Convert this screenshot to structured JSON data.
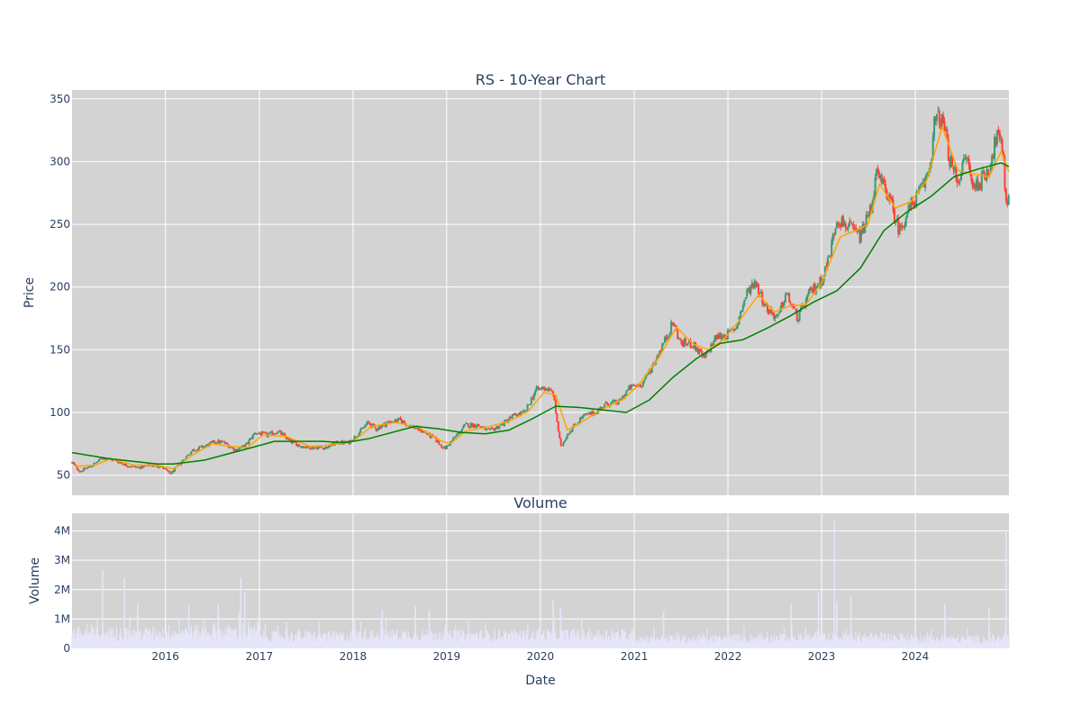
{
  "chart_data": [
    {
      "type": "candlestick",
      "title": "RS - 10-Year Chart",
      "xlabel": "",
      "ylabel": "Price",
      "x_range": [
        "2015-01-02",
        "2024-12-31"
      ],
      "ylim": [
        34,
        357
      ],
      "y_ticks": [
        50,
        100,
        150,
        200,
        250,
        300,
        350
      ],
      "grid": true,
      "legend": "none",
      "plot_background": "#d3d3d3",
      "colors": {
        "up": "#3d9970",
        "down": "#ff4136",
        "ma_short": "#ffa500",
        "ma_long": "#008000",
        "grid": "#ffffff"
      },
      "price_path": [
        [
          "2015-01-02",
          60
        ],
        [
          "2015-02-01",
          53
        ],
        [
          "2015-03-15",
          57
        ],
        [
          "2015-05-01",
          64
        ],
        [
          "2015-06-15",
          62
        ],
        [
          "2015-08-01",
          58
        ],
        [
          "2015-09-15",
          56
        ],
        [
          "2015-11-01",
          58
        ],
        [
          "2015-12-15",
          57
        ],
        [
          "2016-01-20",
          51
        ],
        [
          "2016-03-01",
          60
        ],
        [
          "2016-04-15",
          70
        ],
        [
          "2016-06-01",
          73
        ],
        [
          "2016-07-15",
          77
        ],
        [
          "2016-08-15",
          76
        ],
        [
          "2016-10-01",
          70
        ],
        [
          "2016-11-10",
          74
        ],
        [
          "2016-12-15",
          84
        ],
        [
          "2017-02-01",
          82
        ],
        [
          "2017-03-15",
          85
        ],
        [
          "2017-05-01",
          77
        ],
        [
          "2017-06-15",
          73
        ],
        [
          "2017-08-01",
          72
        ],
        [
          "2017-09-15",
          72
        ],
        [
          "2017-11-01",
          76
        ],
        [
          "2017-12-15",
          76
        ],
        [
          "2018-01-20",
          83
        ],
        [
          "2018-03-01",
          92
        ],
        [
          "2018-04-01",
          87
        ],
        [
          "2018-05-15",
          92
        ],
        [
          "2018-07-01",
          94
        ],
        [
          "2018-08-15",
          89
        ],
        [
          "2018-10-01",
          85
        ],
        [
          "2018-11-15",
          79
        ],
        [
          "2018-12-24",
          71
        ],
        [
          "2019-02-01",
          80
        ],
        [
          "2019-03-15",
          90
        ],
        [
          "2019-05-01",
          90
        ],
        [
          "2019-06-15",
          85
        ],
        [
          "2019-08-01",
          90
        ],
        [
          "2019-09-15",
          97
        ],
        [
          "2019-11-01",
          100
        ],
        [
          "2019-12-15",
          118
        ],
        [
          "2020-01-20",
          120
        ],
        [
          "2020-02-20",
          115
        ],
        [
          "2020-03-20",
          72
        ],
        [
          "2020-04-15",
          83
        ],
        [
          "2020-05-15",
          90
        ],
        [
          "2020-06-15",
          97
        ],
        [
          "2020-08-01",
          100
        ],
        [
          "2020-09-15",
          107
        ],
        [
          "2020-11-01",
          108
        ],
        [
          "2020-12-15",
          120
        ],
        [
          "2021-02-01",
          123
        ],
        [
          "2021-03-15",
          138
        ],
        [
          "2021-05-01",
          158
        ],
        [
          "2021-06-01",
          172
        ],
        [
          "2021-07-01",
          155
        ],
        [
          "2021-08-15",
          155
        ],
        [
          "2021-10-01",
          143
        ],
        [
          "2021-11-15",
          160
        ],
        [
          "2021-12-31",
          162
        ],
        [
          "2022-02-01",
          168
        ],
        [
          "2022-03-15",
          195
        ],
        [
          "2022-04-15",
          205
        ],
        [
          "2022-06-01",
          183
        ],
        [
          "2022-07-15",
          175
        ],
        [
          "2022-08-15",
          195
        ],
        [
          "2022-09-30",
          175
        ],
        [
          "2022-11-15",
          195
        ],
        [
          "2022-12-31",
          205
        ],
        [
          "2023-02-01",
          225
        ],
        [
          "2023-03-01",
          255
        ],
        [
          "2023-04-15",
          248
        ],
        [
          "2023-06-01",
          240
        ],
        [
          "2023-07-15",
          265
        ],
        [
          "2023-08-01",
          290
        ],
        [
          "2023-09-15",
          275
        ],
        [
          "2023-10-30",
          245
        ],
        [
          "2023-12-15",
          265
        ],
        [
          "2024-02-01",
          280
        ],
        [
          "2024-03-01",
          300
        ],
        [
          "2024-03-15",
          330
        ],
        [
          "2024-04-01",
          335
        ],
        [
          "2024-04-20",
          330
        ],
        [
          "2024-05-15",
          300
        ],
        [
          "2024-06-15",
          285
        ],
        [
          "2024-07-20",
          305
        ],
        [
          "2024-08-10",
          280
        ],
        [
          "2024-09-15",
          285
        ],
        [
          "2024-10-15",
          295
        ],
        [
          "2024-11-15",
          322
        ],
        [
          "2024-12-10",
          305
        ],
        [
          "2024-12-18",
          268
        ],
        [
          "2024-12-31",
          270
        ]
      ],
      "series": [
        {
          "type": "line",
          "role": "short-moving-average",
          "color": "#ffa500",
          "points": [
            [
              "2015-01-15",
              57
            ],
            [
              "2015-04-01",
              58
            ],
            [
              "2015-06-01",
              63
            ],
            [
              "2015-09-01",
              58
            ],
            [
              "2015-12-01",
              58
            ],
            [
              "2016-02-01",
              55
            ],
            [
              "2016-04-15",
              66
            ],
            [
              "2016-07-01",
              75
            ],
            [
              "2016-09-15",
              73
            ],
            [
              "2016-11-15",
              72
            ],
            [
              "2017-01-15",
              82
            ],
            [
              "2017-04-15",
              81
            ],
            [
              "2017-07-15",
              73
            ],
            [
              "2017-10-01",
              74
            ],
            [
              "2018-01-01",
              77
            ],
            [
              "2018-03-15",
              89
            ],
            [
              "2018-06-15",
              92
            ],
            [
              "2018-09-15",
              88
            ],
            [
              "2018-12-01",
              78
            ],
            [
              "2019-01-15",
              75
            ],
            [
              "2019-03-15",
              85
            ],
            [
              "2019-06-01",
              88
            ],
            [
              "2019-09-01",
              93
            ],
            [
              "2019-11-15",
              101
            ],
            [
              "2020-01-15",
              116
            ],
            [
              "2020-03-01",
              114
            ],
            [
              "2020-04-15",
              86
            ],
            [
              "2020-06-15",
              93
            ],
            [
              "2020-09-01",
              103
            ],
            [
              "2020-11-15",
              110
            ],
            [
              "2021-01-15",
              121
            ],
            [
              "2021-04-01",
              142
            ],
            [
              "2021-06-15",
              168
            ],
            [
              "2021-08-15",
              155
            ],
            [
              "2021-10-15",
              150
            ],
            [
              "2021-12-15",
              158
            ],
            [
              "2022-03-01",
              177
            ],
            [
              "2022-05-01",
              194
            ],
            [
              "2022-07-01",
              180
            ],
            [
              "2022-09-01",
              185
            ],
            [
              "2022-11-01",
              186
            ],
            [
              "2022-12-31",
              203
            ],
            [
              "2023-03-15",
              240
            ],
            [
              "2023-05-15",
              245
            ],
            [
              "2023-07-01",
              250
            ],
            [
              "2023-08-15",
              282
            ],
            [
              "2023-10-15",
              263
            ],
            [
              "2023-12-15",
              268
            ],
            [
              "2024-02-15",
              285
            ],
            [
              "2024-04-15",
              328
            ],
            [
              "2024-06-15",
              293
            ],
            [
              "2024-08-15",
              290
            ],
            [
              "2024-10-15",
              288
            ],
            [
              "2024-12-01",
              308
            ],
            [
              "2024-12-31",
              292
            ]
          ]
        },
        {
          "type": "line",
          "role": "long-moving-average",
          "color": "#008000",
          "points": [
            [
              "2015-01-02",
              68
            ],
            [
              "2015-06-01",
              63
            ],
            [
              "2015-12-01",
              59
            ],
            [
              "2016-02-01",
              59
            ],
            [
              "2016-06-01",
              62
            ],
            [
              "2016-09-01",
              67
            ],
            [
              "2016-12-01",
              72
            ],
            [
              "2017-03-01",
              77
            ],
            [
              "2017-06-01",
              77
            ],
            [
              "2017-09-01",
              77
            ],
            [
              "2017-12-01",
              76
            ],
            [
              "2018-03-01",
              79
            ],
            [
              "2018-06-01",
              84
            ],
            [
              "2018-09-01",
              89
            ],
            [
              "2018-12-01",
              87
            ],
            [
              "2019-03-01",
              84
            ],
            [
              "2019-06-01",
              83
            ],
            [
              "2019-09-01",
              86
            ],
            [
              "2019-12-01",
              95
            ],
            [
              "2020-03-01",
              105
            ],
            [
              "2020-06-01",
              104
            ],
            [
              "2020-09-01",
              102
            ],
            [
              "2020-12-01",
              100
            ],
            [
              "2021-03-01",
              110
            ],
            [
              "2021-06-01",
              128
            ],
            [
              "2021-09-01",
              143
            ],
            [
              "2021-12-01",
              155
            ],
            [
              "2022-03-01",
              158
            ],
            [
              "2022-06-01",
              167
            ],
            [
              "2022-09-01",
              177
            ],
            [
              "2022-12-01",
              188
            ],
            [
              "2023-03-01",
              197
            ],
            [
              "2023-06-01",
              215
            ],
            [
              "2023-09-01",
              245
            ],
            [
              "2023-12-01",
              260
            ],
            [
              "2024-03-01",
              272
            ],
            [
              "2024-06-01",
              288
            ],
            [
              "2024-09-01",
              294
            ],
            [
              "2024-12-01",
              299
            ],
            [
              "2024-12-31",
              296
            ]
          ]
        }
      ]
    },
    {
      "type": "bar",
      "title": "Volume",
      "xlabel": "Date",
      "ylabel": "Volume",
      "x_range": [
        "2015-01-02",
        "2024-12-31"
      ],
      "x_ticks": [
        "2016",
        "2017",
        "2018",
        "2019",
        "2020",
        "2021",
        "2022",
        "2023",
        "2024"
      ],
      "ylim": [
        0,
        4600000
      ],
      "y_ticks": [
        0,
        1000000,
        2000000,
        3000000,
        4000000
      ],
      "y_tick_labels": [
        "0",
        "1M",
        "2M",
        "3M",
        "4M"
      ],
      "grid": true,
      "bar_color": "#e6e6fa",
      "base_volume_by_year": [
        [
          "2015",
          550000
        ],
        [
          "2016",
          600000
        ],
        [
          "2017",
          450000
        ],
        [
          "2018",
          500000
        ],
        [
          "2019",
          480000
        ],
        [
          "2020",
          500000
        ],
        [
          "2021",
          350000
        ],
        [
          "2022",
          380000
        ],
        [
          "2023",
          400000
        ],
        [
          "2024",
          350000
        ]
      ],
      "spikes": [
        [
          "2015-05-01",
          2650000
        ],
        [
          "2015-07-25",
          2400000
        ],
        [
          "2015-09-15",
          1500000
        ],
        [
          "2016-04-01",
          1450000
        ],
        [
          "2016-07-25",
          1500000
        ],
        [
          "2016-10-20",
          2400000
        ],
        [
          "2016-11-05",
          1900000
        ],
        [
          "2018-04-25",
          1300000
        ],
        [
          "2018-09-01",
          1450000
        ],
        [
          "2018-10-25",
          1300000
        ],
        [
          "2020-02-20",
          1650000
        ],
        [
          "2020-03-20",
          1400000
        ],
        [
          "2021-04-25",
          1250000
        ],
        [
          "2022-09-05",
          1500000
        ],
        [
          "2022-12-20",
          1900000
        ],
        [
          "2023-02-20",
          4380000
        ],
        [
          "2023-03-01",
          1600000
        ],
        [
          "2023-04-25",
          1800000
        ],
        [
          "2024-04-25",
          1500000
        ],
        [
          "2024-10-15",
          1400000
        ],
        [
          "2024-12-20",
          3950000
        ]
      ]
    }
  ]
}
